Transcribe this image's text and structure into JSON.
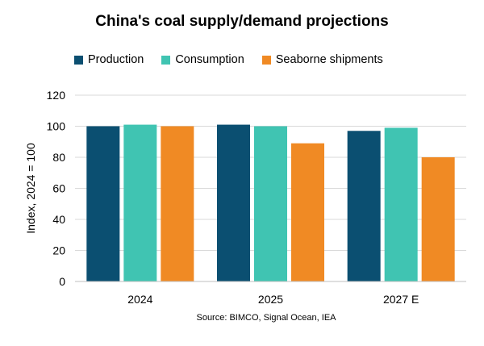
{
  "chart_data": {
    "type": "bar",
    "title": "China's coal supply/demand projections",
    "ylabel": "Index, 2024 = 100",
    "xlabel": "",
    "categories": [
      "2024",
      "2025",
      "2027 E"
    ],
    "series": [
      {
        "name": "Production",
        "color": "#0b4f71",
        "values": [
          100,
          101,
          97
        ]
      },
      {
        "name": "Consumption",
        "color": "#40c4b2",
        "values": [
          101,
          100,
          99
        ]
      },
      {
        "name": "Seaborne shipments",
        "color": "#f08a24",
        "values": [
          100,
          89,
          80
        ]
      }
    ],
    "ylim": [
      0,
      120
    ],
    "yticks": [
      0,
      20,
      40,
      60,
      80,
      100,
      120
    ],
    "grid": true,
    "legend": "top",
    "source": "Source: BIMCO, Signal Ocean, IEA"
  }
}
